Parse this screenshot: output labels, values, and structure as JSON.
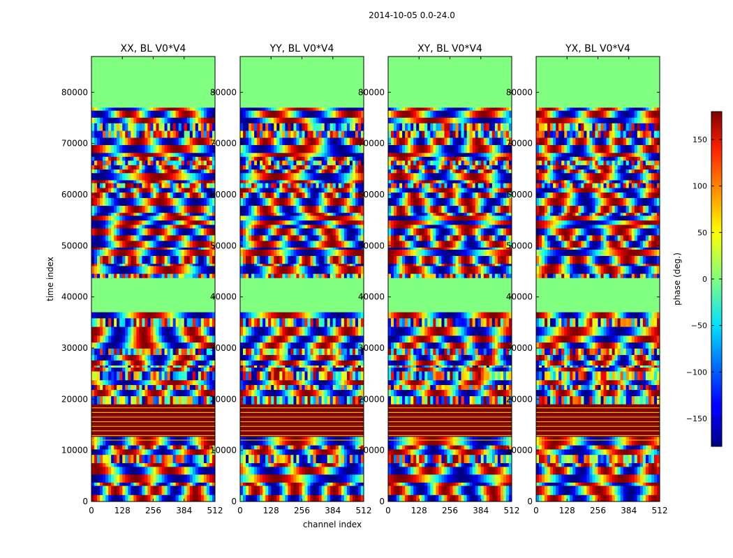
{
  "suptitle": "2014-10-05 0.0-24.0",
  "chart_data": {
    "type": "heatmap",
    "xlabel": "channel index",
    "ylabel": "time index",
    "xlim": [
      0,
      512
    ],
    "ylim": [
      0,
      87000
    ],
    "xticks": [
      0,
      128,
      256,
      384,
      512
    ],
    "yticks": [
      0,
      10000,
      20000,
      30000,
      40000,
      50000,
      60000,
      70000,
      80000
    ],
    "panels": [
      {
        "title": "XX, BL V0*V4"
      },
      {
        "title": "YY, BL V0*V4"
      },
      {
        "title": "XY, BL V0*V4"
      },
      {
        "title": "YX, BL V0*V4"
      }
    ],
    "colorbar": {
      "label": "phase (deg.)",
      "range": [
        -180,
        180
      ],
      "ticks": [
        -150,
        -100,
        -50,
        0,
        50,
        100,
        150
      ],
      "tick_labels": [
        "−150",
        "−100",
        "−50",
        "0",
        "50",
        "100",
        "150"
      ],
      "colormap": "jet"
    },
    "features": [
      {
        "description": "flat phase (0 deg) band",
        "time_range": [
          37000,
          43000
        ],
        "value": 0
      },
      {
        "description": "saturated phase (180 deg) band with thin horizontal lines",
        "time_range": [
          11500,
          19000
        ],
        "value": 180
      },
      {
        "description": "flat phase (0 deg) region at top",
        "time_range": [
          77000,
          87000
        ],
        "value": 0
      }
    ]
  }
}
